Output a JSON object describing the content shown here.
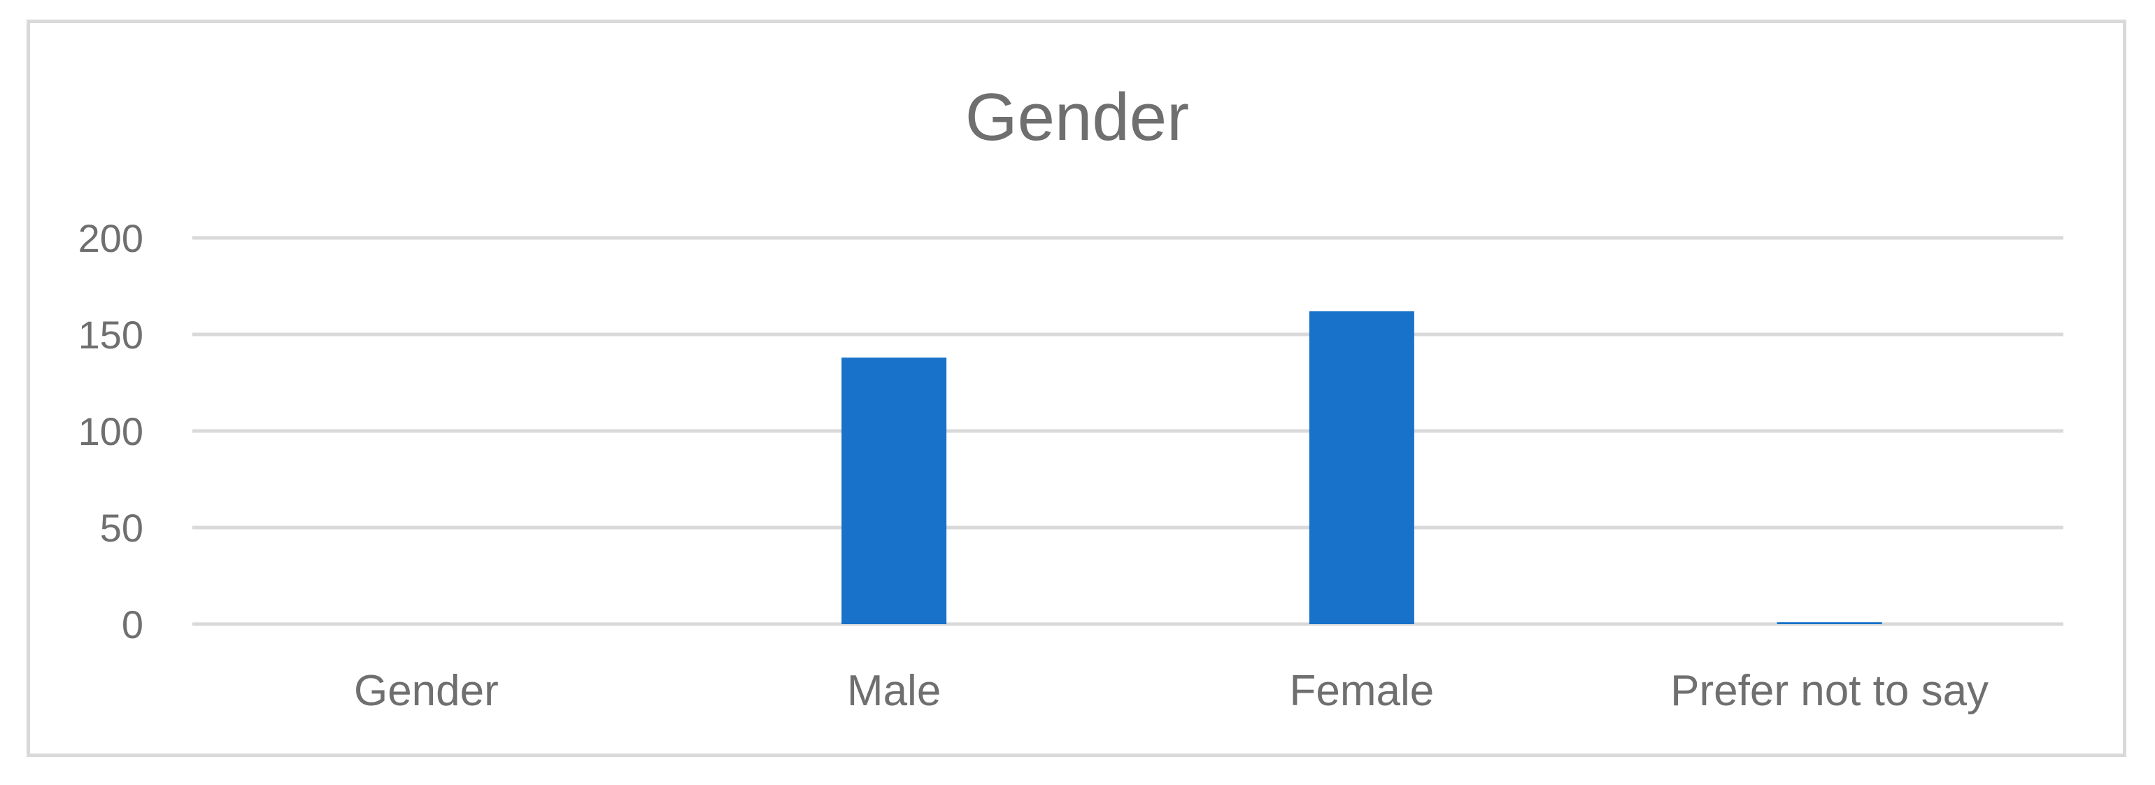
{
  "chart_data": {
    "type": "bar",
    "title": "Gender",
    "categories": [
      "Gender",
      "Male",
      "Female",
      "Prefer not to say"
    ],
    "values": [
      0,
      138,
      162,
      1
    ],
    "ylim": [
      0,
      200
    ],
    "yticks": [
      0,
      50,
      100,
      150,
      200
    ],
    "grid": true,
    "legend": "none",
    "colors": {
      "bar": "#1872C9",
      "grid": "#d9d9d9",
      "text": "#6f6f6f",
      "frame": "#d9d9d9"
    }
  }
}
